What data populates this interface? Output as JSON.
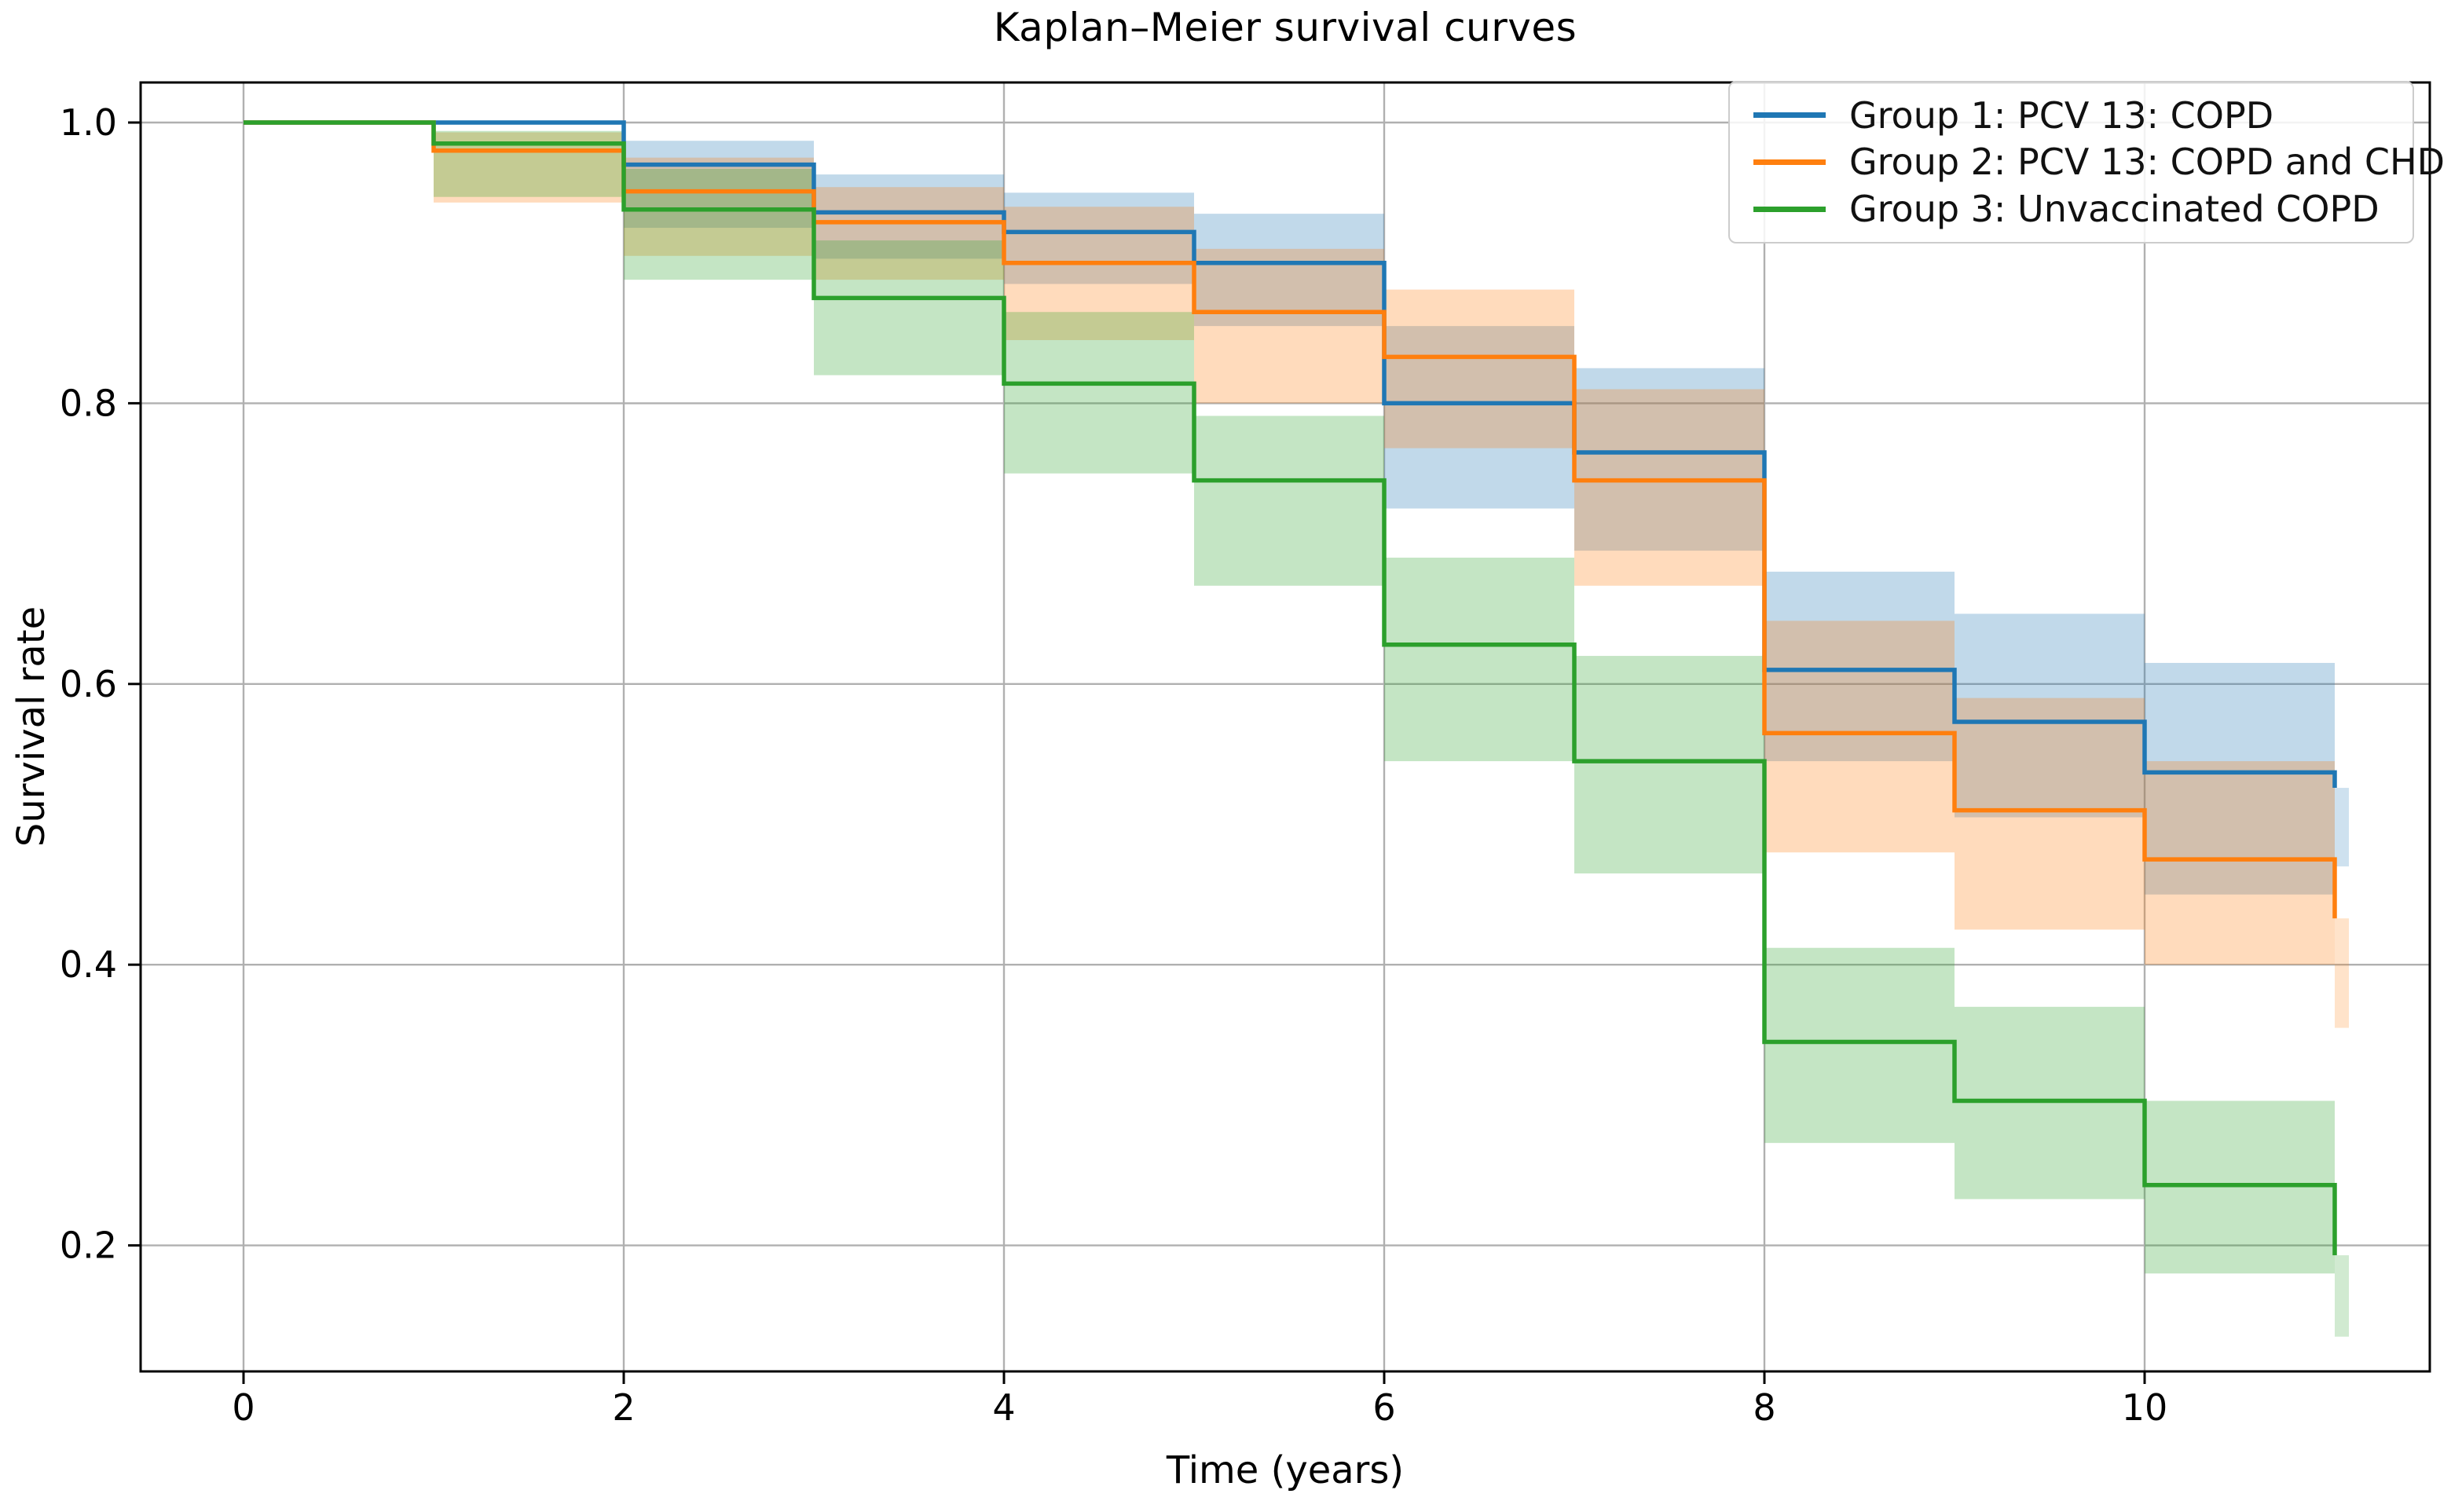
{
  "chart_data": {
    "type": "line",
    "subtype": "kaplan-meier-step",
    "title": "Kaplan–Meier survival curves",
    "xlabel": "Time (years)",
    "ylabel": "Survival rate",
    "x_ticks": [
      0,
      2,
      4,
      6,
      8,
      10
    ],
    "x_tick_labels": [
      "0",
      "2",
      "4",
      "6",
      "8",
      "10"
    ],
    "y_ticks": [
      1.0,
      0.8,
      0.6,
      0.4,
      0.2
    ],
    "y_tick_labels": [
      "1.0",
      "0.8",
      "0.6",
      "0.4",
      "0.2"
    ],
    "xlim": [
      -0.54,
      11.5
    ],
    "ylim": [
      0.11,
      1.03
    ],
    "grid": true,
    "grid_color": "#b0b0b0",
    "legend_position": "upper right",
    "band_alpha": 0.28,
    "whisker_alpha": 0.22,
    "series": [
      {
        "name": "Group 1: PCV 13: COPD",
        "color": "#1f77b4",
        "times": [
          0,
          1,
          2,
          3,
          4,
          5,
          6,
          7,
          8,
          9,
          10,
          11
        ],
        "survival": [
          1.0,
          1.0,
          0.97,
          0.936,
          0.922,
          0.9,
          0.8,
          0.765,
          0.61,
          0.573,
          0.537
        ],
        "end_value": 0.526,
        "ci_lower": [
          null,
          null,
          0.925,
          0.903,
          0.885,
          0.855,
          0.725,
          0.695,
          0.545,
          0.505,
          0.45
        ],
        "ci_upper": [
          null,
          null,
          0.987,
          0.963,
          0.95,
          0.935,
          0.855,
          0.825,
          0.68,
          0.65,
          0.615
        ],
        "end_whisker": [
          0.47,
          0.526
        ]
      },
      {
        "name": "Group 2: PCV 13: COPD and CHD",
        "color": "#ff7f0e",
        "times": [
          0,
          1,
          2,
          3,
          4,
          5,
          6,
          7,
          8,
          9,
          10,
          11
        ],
        "survival": [
          1.0,
          0.98,
          0.951,
          0.929,
          0.9,
          0.865,
          0.833,
          0.745,
          0.565,
          0.51,
          0.475
        ],
        "end_value": 0.433,
        "ci_lower": [
          null,
          0.943,
          0.905,
          0.888,
          0.845,
          0.8,
          0.768,
          0.67,
          0.48,
          0.425,
          0.4
        ],
        "ci_upper": [
          null,
          0.993,
          0.975,
          0.954,
          0.94,
          0.91,
          0.881,
          0.81,
          0.645,
          0.59,
          0.545
        ],
        "end_whisker": [
          0.355,
          0.433
        ]
      },
      {
        "name": "Group 3: Unvaccinated COPD",
        "color": "#2ca02c",
        "times": [
          0,
          1,
          2,
          3,
          4,
          5,
          6,
          7,
          8,
          9,
          10,
          11
        ],
        "survival": [
          1.0,
          0.985,
          0.938,
          0.875,
          0.814,
          0.745,
          0.628,
          0.545,
          0.345,
          0.303,
          0.243
        ],
        "end_value": 0.193,
        "ci_lower": [
          null,
          0.947,
          0.888,
          0.82,
          0.75,
          0.67,
          0.545,
          0.465,
          0.273,
          0.233,
          0.18
        ],
        "ci_upper": [
          null,
          0.994,
          0.967,
          0.916,
          0.865,
          0.791,
          0.69,
          0.62,
          0.412,
          0.37,
          0.303
        ],
        "end_whisker": [
          0.135,
          0.193
        ]
      }
    ]
  }
}
